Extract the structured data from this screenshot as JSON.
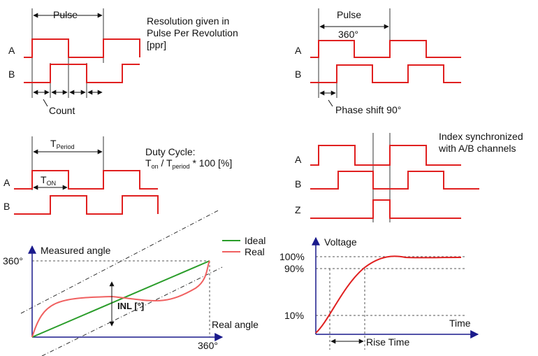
{
  "panel_resolution": {
    "pulse_label": "Pulse",
    "description_line1": "Resolution given in",
    "description_line2": "Pulse Per Revolution",
    "description_line3": "[ppr]",
    "channel_a": "A",
    "channel_b": "B",
    "count_label": "Count"
  },
  "panel_phase": {
    "pulse_label": "Pulse",
    "angle_label": "360°",
    "channel_a": "A",
    "channel_b": "B",
    "phase_label": "Phase shift 90°"
  },
  "panel_duty": {
    "period_t": "T",
    "period_sub": "Period",
    "duty_line1": "Duty Cycle:",
    "duty_t_on": "T",
    "duty_on_sub": "on",
    "duty_mid": " / T",
    "duty_period_sub": "period",
    "duty_tail": " * 100 [%]",
    "ton_t": "T",
    "ton_sub": "ON",
    "channel_a": "A",
    "channel_b": "B"
  },
  "panel_index": {
    "description_line1": "Index synchronized",
    "description_line2": "with A/B channels",
    "channel_a": "A",
    "channel_b": "B",
    "channel_z": "Z"
  },
  "panel_inl": {
    "y_axis_label": "Measured angle",
    "y_tick": "360°",
    "x_axis_label": "Real angle",
    "x_tick": "360°",
    "inl_label": "INL [°]",
    "legend_ideal": "Ideal",
    "legend_real": "Real",
    "ideal_color": "#2a9d2a",
    "real_color": "#f06060"
  },
  "panel_rise": {
    "y_axis_label": "Voltage",
    "tick_100": "100%",
    "tick_90": "90%",
    "tick_10": "10%",
    "x_axis_label": "Time",
    "rise_label": "Rise Time",
    "curve_color": "#e02020"
  }
}
